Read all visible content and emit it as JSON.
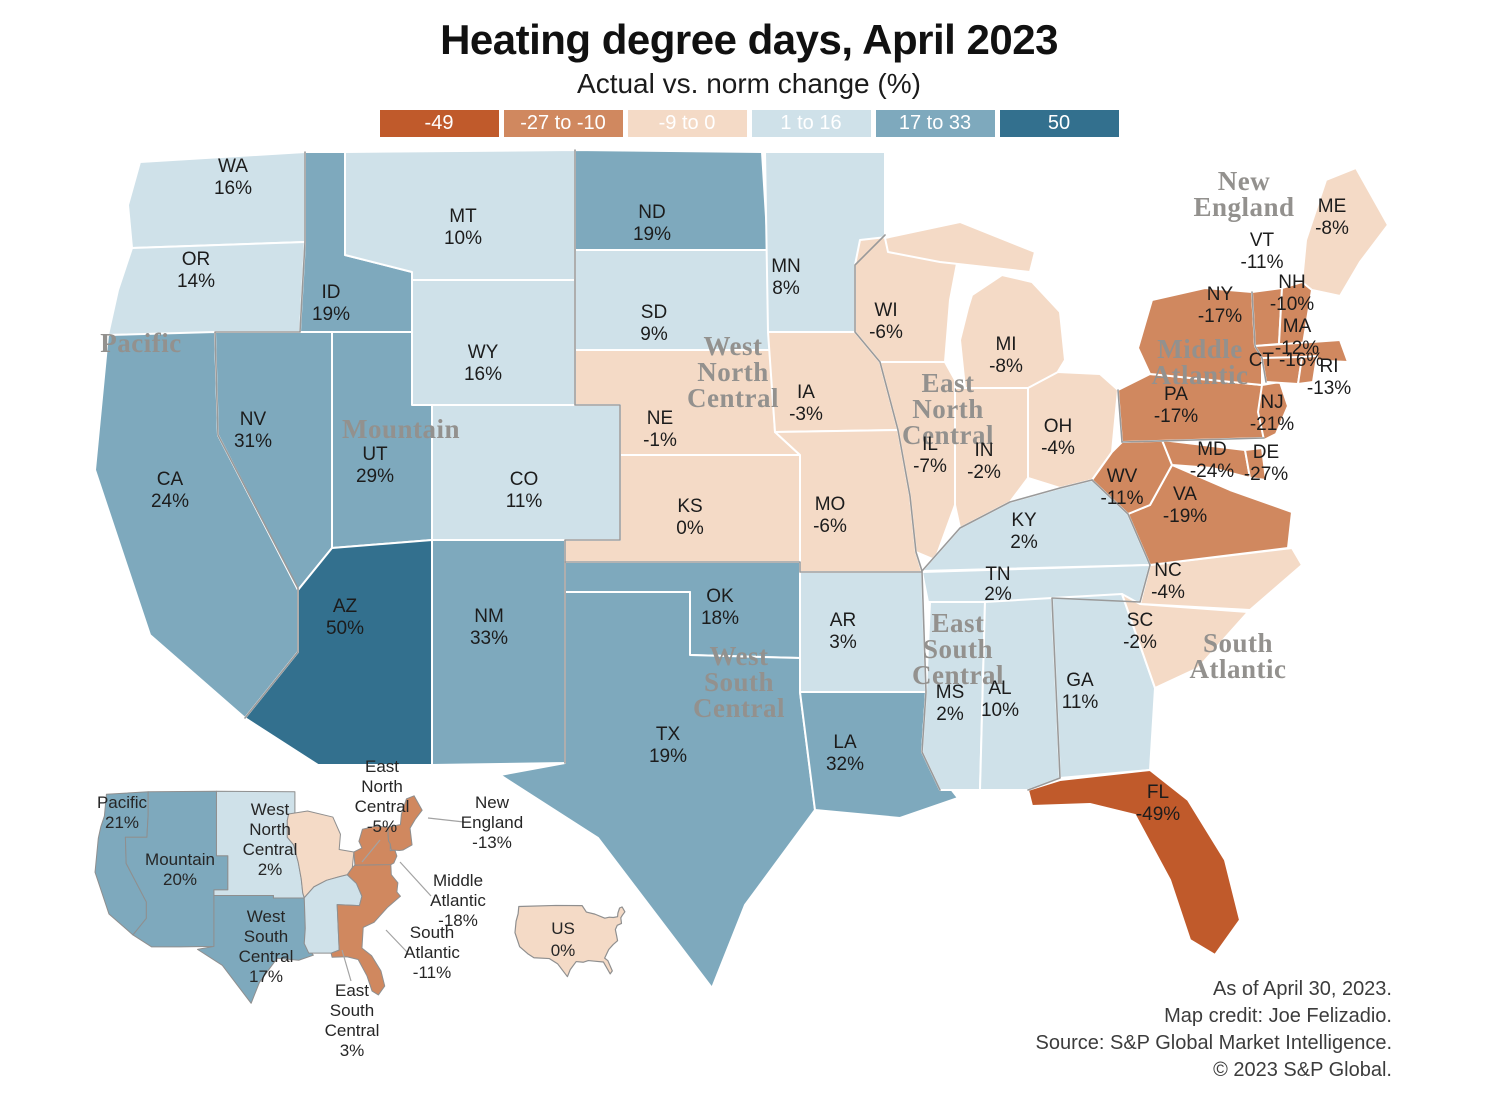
{
  "header": {
    "title": "Heating degree days, April 2023",
    "subtitle": "Actual vs. norm change (%)"
  },
  "credits": {
    "lines": [
      "As of April 30, 2023.",
      "Map credit: Joe Felizadio.",
      "Source: S&P Global Market Intelligence.",
      "© 2023 S&P Global."
    ]
  },
  "chart_data": {
    "type": "heatmap",
    "map_form": "us-state-choropleth",
    "title": "Heating degree days, April 2023",
    "subtitle": "Actual vs. norm change (%)",
    "unit": "%",
    "legend_position": "top",
    "legend_bins": [
      {
        "label": "-49",
        "color": "#c05a2b"
      },
      {
        "label": "-27 to -10",
        "color": "#d0885f"
      },
      {
        "label": "-9 to 0",
        "color": "#f4dac6"
      },
      {
        "label": "1 to 16",
        "color": "#cfe1e9"
      },
      {
        "label": "17 to 33",
        "color": "#7ea9bd"
      },
      {
        "label": "50",
        "color": "#33708e"
      }
    ],
    "states": [
      {
        "state": "WA",
        "value": 16,
        "label": "16%",
        "bin": 3
      },
      {
        "state": "OR",
        "value": 14,
        "label": "14%",
        "bin": 3
      },
      {
        "state": "CA",
        "value": 24,
        "label": "24%",
        "bin": 4
      },
      {
        "state": "NV",
        "value": 31,
        "label": "31%",
        "bin": 4
      },
      {
        "state": "ID",
        "value": 19,
        "label": "19%",
        "bin": 4
      },
      {
        "state": "MT",
        "value": 10,
        "label": "10%",
        "bin": 3
      },
      {
        "state": "WY",
        "value": 16,
        "label": "16%",
        "bin": 3
      },
      {
        "state": "UT",
        "value": 29,
        "label": "29%",
        "bin": 4
      },
      {
        "state": "CO",
        "value": 11,
        "label": "11%",
        "bin": 3
      },
      {
        "state": "AZ",
        "value": 50,
        "label": "50%",
        "bin": 5
      },
      {
        "state": "NM",
        "value": 33,
        "label": "33%",
        "bin": 4
      },
      {
        "state": "ND",
        "value": 19,
        "label": "19%",
        "bin": 4
      },
      {
        "state": "SD",
        "value": 9,
        "label": "9%",
        "bin": 3
      },
      {
        "state": "NE",
        "value": -1,
        "label": "-1%",
        "bin": 2
      },
      {
        "state": "KS",
        "value": 0,
        "label": "0%",
        "bin": 2
      },
      {
        "state": "OK",
        "value": 18,
        "label": "18%",
        "bin": 4
      },
      {
        "state": "TX",
        "value": 19,
        "label": "19%",
        "bin": 4
      },
      {
        "state": "MN",
        "value": 8,
        "label": "8%",
        "bin": 3
      },
      {
        "state": "IA",
        "value": -3,
        "label": "-3%",
        "bin": 2
      },
      {
        "state": "MO",
        "value": -6,
        "label": "-6%",
        "bin": 2
      },
      {
        "state": "AR",
        "value": 3,
        "label": "3%",
        "bin": 3
      },
      {
        "state": "LA",
        "value": 32,
        "label": "32%",
        "bin": 4
      },
      {
        "state": "WI",
        "value": -6,
        "label": "-6%",
        "bin": 2
      },
      {
        "state": "IL",
        "value": -7,
        "label": "-7%",
        "bin": 2
      },
      {
        "state": "MI",
        "value": -8,
        "label": "-8%",
        "bin": 2
      },
      {
        "state": "IN",
        "value": -2,
        "label": "-2%",
        "bin": 2
      },
      {
        "state": "OH",
        "value": -4,
        "label": "-4%",
        "bin": 2
      },
      {
        "state": "KY",
        "value": 2,
        "label": "2%",
        "bin": 3
      },
      {
        "state": "TN",
        "value": 2,
        "label": "2%",
        "bin": 3
      },
      {
        "state": "MS",
        "value": 2,
        "label": "2%",
        "bin": 3
      },
      {
        "state": "AL",
        "value": 10,
        "label": "10%",
        "bin": 3
      },
      {
        "state": "GA",
        "value": 11,
        "label": "11%",
        "bin": 3
      },
      {
        "state": "FL",
        "value": -49,
        "label": "-49%",
        "bin": 0
      },
      {
        "state": "SC",
        "value": -2,
        "label": "-2%",
        "bin": 2
      },
      {
        "state": "NC",
        "value": -4,
        "label": "-4%",
        "bin": 2
      },
      {
        "state": "VA",
        "value": -19,
        "label": "-19%",
        "bin": 1
      },
      {
        "state": "WV",
        "value": -11,
        "label": "-11%",
        "bin": 1
      },
      {
        "state": "MD",
        "value": -24,
        "label": "-24%",
        "bin": 1
      },
      {
        "state": "DE",
        "value": -27,
        "label": "-27%",
        "bin": 1
      },
      {
        "state": "PA",
        "value": -17,
        "label": "-17%",
        "bin": 1
      },
      {
        "state": "NJ",
        "value": -21,
        "label": "-21%",
        "bin": 1
      },
      {
        "state": "NY",
        "value": -17,
        "label": "-17%",
        "bin": 1
      },
      {
        "state": "VT",
        "value": -11,
        "label": "-11%",
        "bin": 1
      },
      {
        "state": "NH",
        "value": -10,
        "label": "-10%",
        "bin": 1
      },
      {
        "state": "MA",
        "value": -12,
        "label": "-12%",
        "bin": 1
      },
      {
        "state": "CT",
        "value": -16,
        "label": "-16%",
        "bin": 1
      },
      {
        "state": "RI",
        "value": -13,
        "label": "-13%",
        "bin": 1
      },
      {
        "state": "ME",
        "value": -8,
        "label": "-8%",
        "bin": 2
      }
    ],
    "census_divisions": [
      {
        "key": "pacific",
        "name": "Pacific",
        "value": 21,
        "label": "21%",
        "bin": 4
      },
      {
        "key": "mountain",
        "name": "Mountain",
        "value": 20,
        "label": "20%",
        "bin": 4
      },
      {
        "key": "wnc",
        "name": "West North Central",
        "value": 2,
        "label": "2%",
        "bin": 3
      },
      {
        "key": "enc",
        "name": "East North Central",
        "value": -5,
        "label": "-5%",
        "bin": 2
      },
      {
        "key": "neng",
        "name": "New England",
        "value": -13,
        "label": "-13%",
        "bin": 1
      },
      {
        "key": "matl",
        "name": "Middle Atlantic",
        "value": -18,
        "label": "-18%",
        "bin": 1
      },
      {
        "key": "satl",
        "name": "South Atlantic",
        "value": -11,
        "label": "-11%",
        "bin": 1
      },
      {
        "key": "wsc",
        "name": "West South Central",
        "value": 17,
        "label": "17%",
        "bin": 4
      },
      {
        "key": "esc",
        "name": "East South Central",
        "value": 3,
        "label": "3%",
        "bin": 3
      }
    ],
    "national": {
      "name": "US",
      "value": 0,
      "label": "0%",
      "bin": 2
    }
  }
}
